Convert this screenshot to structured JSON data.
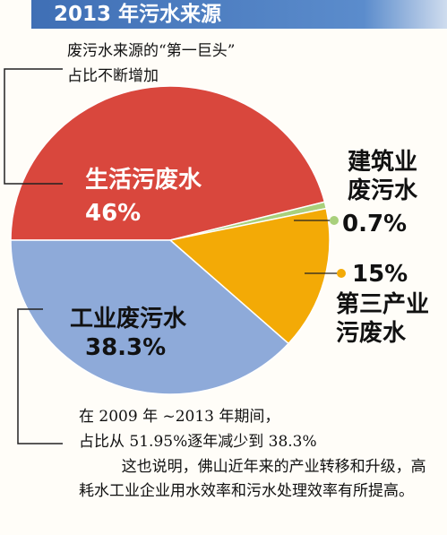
{
  "chart_data": {
    "type": "pie",
    "title": "2013 年污水来源",
    "categories": [
      "生活污废水",
      "建筑业废污水",
      "第三产业污废水",
      "工业废污水"
    ],
    "values": [
      46,
      0.7,
      15,
      38.3
    ],
    "value_labels": [
      "46%",
      "0.7%",
      "15%",
      "38.3%"
    ],
    "colors": [
      "#d9473d",
      "#a9d07c",
      "#f3aa06",
      "#8eaad9"
    ],
    "annotations": {
      "top": [
        "废污水来源的“第一巨头”",
        "占比不断增加"
      ],
      "bottom": [
        "在 2009 年 ~2013 年期间，",
        "占比从 51.95%逐年减少到 38.3%",
        "这也说明，佛山近年来的产业转移和升级，高耗水工业企业用水效率和污水处理效率有所提高。"
      ]
    }
  }
}
